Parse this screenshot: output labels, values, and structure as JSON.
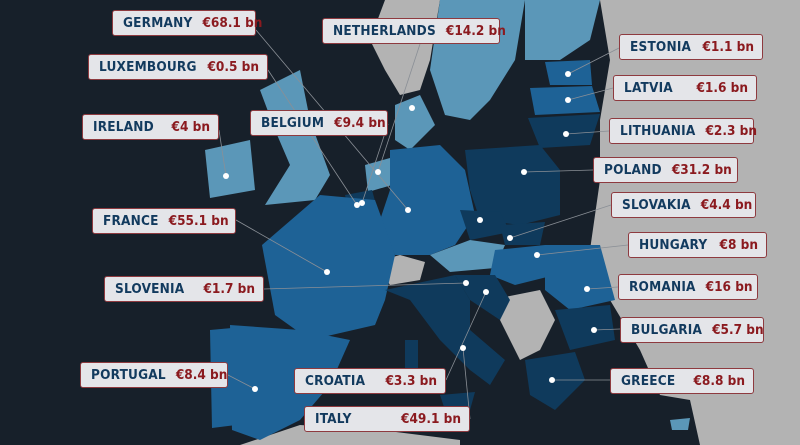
{
  "colors": {
    "ocean": "#17202a",
    "non_eu_land": "#b3b3b3",
    "light_blue": "#5b97b8",
    "mid_blue": "#1e6296",
    "dark_blue": "#0f3a5c",
    "name_text": "#123a5e",
    "value_text": "#8b1a1f",
    "label_bg": "#e4e5e9"
  },
  "labels": [
    {
      "country": "GERMANY",
      "value": "€68.1 bn"
    },
    {
      "country": "NETHERLANDS",
      "value": "€14.2 bn"
    },
    {
      "country": "LUXEMBOURG",
      "value": "€0.5 bn"
    },
    {
      "country": "IRELAND",
      "value": "€4 bn"
    },
    {
      "country": "BELGIUM",
      "value": "€9.4 bn"
    },
    {
      "country": "FRANCE",
      "value": "€55.1 bn"
    },
    {
      "country": "SLOVENIA",
      "value": "€1.7 bn"
    },
    {
      "country": "PORTUGAL",
      "value": "€8.4 bn"
    },
    {
      "country": "CROATIA",
      "value": "€3.3 bn"
    },
    {
      "country": "ITALY",
      "value": "€49.1 bn"
    },
    {
      "country": "ESTONIA",
      "value": "€1.1 bn"
    },
    {
      "country": "LATVIA",
      "value": "€1.6 bn"
    },
    {
      "country": "LITHUANIA",
      "value": "€2.3 bn"
    },
    {
      "country": "POLAND",
      "value": "€31.2 bn"
    },
    {
      "country": "SLOVAKIA",
      "value": "€4.4 bn"
    },
    {
      "country": "HUNGARY",
      "value": "€8 bn"
    },
    {
      "country": "ROMANIA",
      "value": "€16 bn"
    },
    {
      "country": "BULGARIA",
      "value": "€5.7 bn"
    },
    {
      "country": "GREECE",
      "value": "€8.8 bn"
    }
  ]
}
